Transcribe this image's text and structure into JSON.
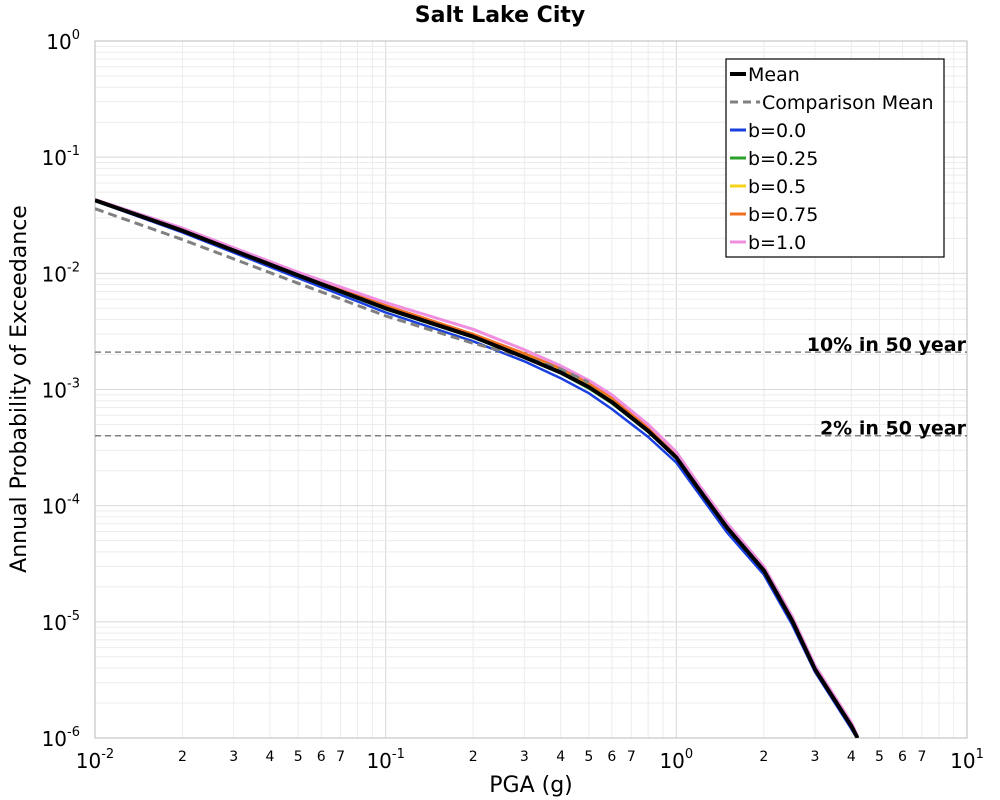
{
  "chart_data": {
    "type": "line",
    "title": "Salt Lake City",
    "xlabel": "PGA (g)",
    "ylabel": "Annual Probability of Exceedance",
    "xscale": "log",
    "yscale": "log",
    "xlim": [
      0.01,
      10
    ],
    "ylim": [
      1e-06,
      1
    ],
    "grid": true,
    "legend_position": "top-right",
    "x_major_ticks": [
      {
        "value": 0.01,
        "base": "10",
        "exp": "-2"
      },
      {
        "value": 0.1,
        "base": "10",
        "exp": "-1"
      },
      {
        "value": 1,
        "base": "10",
        "exp": "0"
      },
      {
        "value": 10,
        "base": "10",
        "exp": "1"
      }
    ],
    "x_minor_tick_labels": [
      "2",
      "3",
      "4",
      "5",
      "6",
      "7"
    ],
    "y_major_ticks": [
      {
        "value": 1,
        "base": "10",
        "exp": "0"
      },
      {
        "value": 0.1,
        "base": "10",
        "exp": "-1"
      },
      {
        "value": 0.01,
        "base": "10",
        "exp": "-2"
      },
      {
        "value": 0.001,
        "base": "10",
        "exp": "-3"
      },
      {
        "value": 0.0001,
        "base": "10",
        "exp": "-4"
      },
      {
        "value": 1e-05,
        "base": "10",
        "exp": "-5"
      },
      {
        "value": 1e-06,
        "base": "10",
        "exp": "-6"
      }
    ],
    "reference_lines": [
      {
        "label": "10% in 50 year",
        "y": 0.0021,
        "color": "#808080"
      },
      {
        "label": "2% in 50 year",
        "y": 0.0004,
        "color": "#808080"
      }
    ],
    "series": [
      {
        "name": "b=0.0",
        "color": "#1a3fe0",
        "width": 2.5,
        "dash": "",
        "x": [
          0.01,
          0.02,
          0.05,
          0.1,
          0.2,
          0.3,
          0.4,
          0.5,
          0.6,
          0.8,
          1.0,
          1.2,
          1.5,
          2.0,
          2.5,
          3.0,
          4.0,
          4.2
        ],
        "y": [
          0.042,
          0.0225,
          0.0091,
          0.0046,
          0.0026,
          0.00175,
          0.00125,
          0.00093,
          0.00068,
          0.00039,
          0.000235,
          0.000125,
          5.8e-05,
          2.55e-05,
          9.5e-06,
          3.7e-06,
          1.2e-06,
          9.8e-07
        ]
      },
      {
        "name": "b=0.25",
        "color": "#2ca02c",
        "width": 2.5,
        "dash": "",
        "x": [
          0.01,
          0.02,
          0.05,
          0.1,
          0.2,
          0.3,
          0.4,
          0.5,
          0.6,
          0.8,
          1.0,
          1.2,
          1.5,
          2.0,
          2.5,
          3.0,
          4.0,
          4.2
        ],
        "y": [
          0.0425,
          0.0232,
          0.0095,
          0.0049,
          0.0028,
          0.00188,
          0.00138,
          0.00102,
          0.00076,
          0.00043,
          0.00026,
          0.000135,
          6.3e-05,
          2.75e-05,
          1.02e-05,
          3.9e-06,
          1.25e-06,
          1e-06
        ]
      },
      {
        "name": "b=0.5",
        "color": "#f5d31b",
        "width": 2.5,
        "dash": "",
        "x": [
          0.01,
          0.02,
          0.05,
          0.1,
          0.2,
          0.3,
          0.4,
          0.5,
          0.6,
          0.8,
          1.0,
          1.2,
          1.5,
          2.0,
          2.5,
          3.0,
          4.0,
          4.2
        ],
        "y": [
          0.0428,
          0.0236,
          0.0097,
          0.0051,
          0.0029,
          0.00196,
          0.00145,
          0.00108,
          0.0008,
          0.00045,
          0.000268,
          0.00014,
          6.5e-05,
          2.83e-05,
          1.05e-05,
          4e-06,
          1.3e-06,
          1e-06
        ]
      },
      {
        "name": "b=0.75",
        "color": "#f07020",
        "width": 2.5,
        "dash": "",
        "x": [
          0.01,
          0.02,
          0.05,
          0.1,
          0.2,
          0.3,
          0.4,
          0.5,
          0.6,
          0.8,
          1.0,
          1.2,
          1.5,
          2.0,
          2.5,
          3.0,
          4.0,
          4.2
        ],
        "y": [
          0.043,
          0.024,
          0.0099,
          0.0053,
          0.003,
          0.00205,
          0.00152,
          0.00114,
          0.00085,
          0.00047,
          0.000275,
          0.000143,
          6.7e-05,
          2.9e-05,
          1.08e-05,
          4.1e-06,
          1.33e-06,
          1.02e-06
        ]
      },
      {
        "name": "b=1.0",
        "color": "#ef8fe0",
        "width": 3,
        "dash": "",
        "x": [
          0.01,
          0.02,
          0.05,
          0.1,
          0.2,
          0.3,
          0.4,
          0.5,
          0.6,
          0.8,
          1.0,
          1.2,
          1.5,
          2.0,
          2.5,
          3.0,
          4.0,
          4.2
        ],
        "y": [
          0.0432,
          0.0245,
          0.0102,
          0.0056,
          0.0033,
          0.0022,
          0.0016,
          0.0012,
          0.0009,
          0.0005,
          0.00029,
          0.00015,
          7e-05,
          3e-05,
          1.12e-05,
          4.2e-06,
          1.36e-06,
          1.04e-06
        ]
      },
      {
        "name": "Comparison Mean",
        "color": "#808080",
        "width": 3,
        "dash": "9,5",
        "x": [
          0.01,
          0.02,
          0.05,
          0.1,
          0.2,
          0.3,
          0.4,
          0.5
        ],
        "y": [
          0.036,
          0.0195,
          0.0082,
          0.0043,
          0.0025,
          0.0019,
          0.0015,
          0.00115
        ]
      },
      {
        "name": "Mean",
        "color": "#000000",
        "width": 4,
        "dash": "",
        "x": [
          0.01,
          0.02,
          0.05,
          0.1,
          0.2,
          0.3,
          0.4,
          0.5,
          0.6,
          0.8,
          1.0,
          1.2,
          1.5,
          2.0,
          2.5,
          3.0,
          4.0,
          4.2
        ],
        "y": [
          0.0425,
          0.0233,
          0.0096,
          0.005,
          0.00285,
          0.0019,
          0.0014,
          0.00105,
          0.00078,
          0.00044,
          0.00026,
          0.000137,
          6.4e-05,
          2.77e-05,
          1.03e-05,
          3.9e-06,
          1.27e-06,
          1e-06
        ]
      }
    ],
    "legend": [
      {
        "label": "Mean",
        "color": "#000000",
        "dash": "",
        "width": 4
      },
      {
        "label": "Comparison Mean",
        "color": "#808080",
        "dash": "9,5",
        "width": 3
      },
      {
        "label": "b=0.0",
        "color": "#1a3fe0",
        "dash": "",
        "width": 3
      },
      {
        "label": "b=0.25",
        "color": "#2ca02c",
        "dash": "",
        "width": 3
      },
      {
        "label": "b=0.5",
        "color": "#f5d31b",
        "dash": "",
        "width": 3
      },
      {
        "label": "b=0.75",
        "color": "#f07020",
        "dash": "",
        "width": 3
      },
      {
        "label": "b=1.0",
        "color": "#ef8fe0",
        "dash": "",
        "width": 3
      }
    ]
  }
}
